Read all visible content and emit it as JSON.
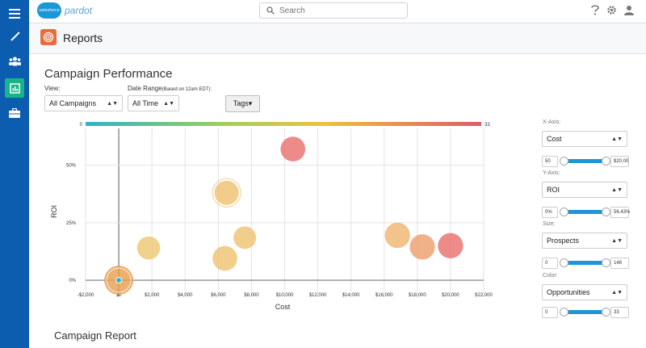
{
  "topbar": {
    "logo_cloud": "salesforce",
    "logo_text": "pardot",
    "search_placeholder": "Search",
    "icons": [
      "help-icon",
      "gear-icon",
      "user-icon"
    ]
  },
  "rail": {
    "items": [
      "menu-icon",
      "wand-icon",
      "users-icon",
      "reports-icon",
      "briefcase-icon"
    ],
    "active": "reports-icon"
  },
  "page": {
    "title": "Reports"
  },
  "performance": {
    "title": "Campaign Performance",
    "view_label": "View:",
    "view_value": "All Campaigns",
    "date_label": "Date Range",
    "date_sub": "(Based on 12am EDT):",
    "date_value": "All Time",
    "tags_label": "Tags▾"
  },
  "report": {
    "title": "Campaign Report"
  },
  "controls": {
    "x_axis_label": "X-Axis:",
    "x_axis_value": "Cost",
    "x_min": "50",
    "x_max": "$20,00",
    "y_axis_label": "Y-Axis:",
    "y_axis_value": "ROI",
    "y_min": "0%",
    "y_max": "56.43%",
    "size_label": "Size:",
    "size_value": "Prospects",
    "size_min": "0",
    "size_max": "148",
    "color_label": "Color:",
    "color_value": "Opportunities",
    "color_min": "0",
    "color_max": "33"
  },
  "colors": {
    "rail": "#0c5cb0",
    "active": "#18b38a",
    "accent": "#1f95d6",
    "reports_icon": "#e96c3d"
  },
  "chart_data": {
    "type": "scatter",
    "xlabel": "Cost",
    "ylabel": "ROI",
    "xlim": [
      -2000,
      22000
    ],
    "ylim": [
      -0.07,
      0.66
    ],
    "x_ticks": [
      -2000,
      0,
      2000,
      4000,
      6000,
      8000,
      10000,
      12000,
      14000,
      16000,
      18000,
      20000,
      22000
    ],
    "x_tick_labels": [
      "-$2,000",
      "$0",
      "$2,000",
      "$4,000",
      "$6,000",
      "$8,000",
      "$10,000",
      "$12,000",
      "$14,000",
      "$16,000",
      "$18,000",
      "$20,000",
      "$22,000"
    ],
    "y_ticks": [
      0,
      0.25,
      0.5
    ],
    "y_tick_labels": [
      "0%",
      "25%",
      "50%"
    ],
    "color_scale": {
      "min_label": "0",
      "max_label": "33",
      "min": 0,
      "max": 33
    },
    "grid": true,
    "points": [
      {
        "x": 0,
        "y": 0,
        "color_value": 8,
        "size": 150,
        "selected": true
      },
      {
        "x": 1800,
        "y": 0.14,
        "color_value": 7,
        "size": 95
      },
      {
        "x": 6500,
        "y": 0.38,
        "color_value": 10,
        "size": 105,
        "outlined": true
      },
      {
        "x": 6400,
        "y": 0.095,
        "color_value": 9,
        "size": 110
      },
      {
        "x": 7600,
        "y": 0.185,
        "color_value": 9,
        "size": 90
      },
      {
        "x": 10500,
        "y": 0.57,
        "color_value": 30,
        "size": 110
      },
      {
        "x": 16800,
        "y": 0.195,
        "color_value": 14,
        "size": 115
      },
      {
        "x": 18300,
        "y": 0.145,
        "color_value": 20,
        "size": 115
      },
      {
        "x": 20000,
        "y": 0.15,
        "color_value": 30,
        "size": 115
      }
    ]
  }
}
